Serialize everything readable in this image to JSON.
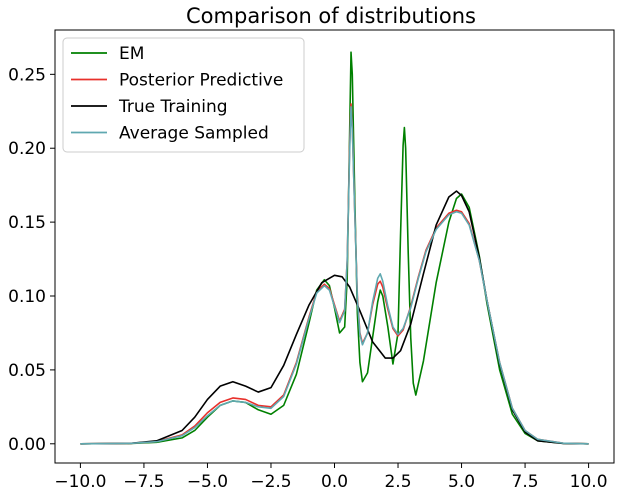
{
  "chart_data": {
    "type": "line",
    "title": "Comparison of distributions",
    "xlabel": "",
    "ylabel": "",
    "xlim": [
      -11.0,
      11.0
    ],
    "ylim": [
      -0.013,
      0.28
    ],
    "x_ticks": [
      -10.0,
      -7.5,
      -5.0,
      -2.5,
      0.0,
      2.5,
      5.0,
      7.5,
      10.0
    ],
    "x_tick_labels": [
      "−10.0",
      "−7.5",
      "−5.0",
      "−2.5",
      "0.0",
      "2.5",
      "5.0",
      "7.5",
      "10.0"
    ],
    "y_ticks": [
      0.0,
      0.05,
      0.1,
      0.15,
      0.2,
      0.25
    ],
    "y_tick_labels": [
      "0.00",
      "0.05",
      "0.10",
      "0.15",
      "0.20",
      "0.25"
    ],
    "grid": false,
    "legend_position": "top-left",
    "series": [
      {
        "name": "EM",
        "color": "#008000",
        "x": [
          -10,
          -8,
          -7,
          -6,
          -5.5,
          -5,
          -4.5,
          -4,
          -3.5,
          -3,
          -2.5,
          -2,
          -1.5,
          -1,
          -0.7,
          -0.4,
          -0.2,
          0,
          0.2,
          0.4,
          0.5,
          0.6,
          0.65,
          0.7,
          0.8,
          0.9,
          1.0,
          1.1,
          1.3,
          1.5,
          1.7,
          1.8,
          1.9,
          2.1,
          2.3,
          2.5,
          2.6,
          2.7,
          2.75,
          2.8,
          2.9,
          3.0,
          3.1,
          3.2,
          3.5,
          4.0,
          4.5,
          4.8,
          5.0,
          5.3,
          5.7,
          6.0,
          6.5,
          7.0,
          7.5,
          8.0,
          9.0,
          10.0
        ],
        "y": [
          0.0,
          0.0002,
          0.001,
          0.004,
          0.009,
          0.018,
          0.026,
          0.029,
          0.028,
          0.023,
          0.02,
          0.026,
          0.047,
          0.082,
          0.104,
          0.111,
          0.107,
          0.092,
          0.075,
          0.079,
          0.112,
          0.215,
          0.265,
          0.25,
          0.165,
          0.088,
          0.055,
          0.042,
          0.048,
          0.072,
          0.096,
          0.104,
          0.1,
          0.079,
          0.054,
          0.075,
          0.142,
          0.202,
          0.214,
          0.2,
          0.13,
          0.072,
          0.041,
          0.033,
          0.056,
          0.109,
          0.15,
          0.166,
          0.169,
          0.16,
          0.127,
          0.095,
          0.05,
          0.02,
          0.007,
          0.002,
          0.0003,
          0.0
        ]
      },
      {
        "name": "Posterior Predictive",
        "color": "#e8302b",
        "x": [
          -10,
          -8,
          -7,
          -6,
          -5.5,
          -5,
          -4.5,
          -4,
          -3.5,
          -3,
          -2.5,
          -2,
          -1.5,
          -1,
          -0.7,
          -0.4,
          -0.2,
          0,
          0.2,
          0.4,
          0.5,
          0.6,
          0.65,
          0.7,
          0.8,
          0.9,
          1.0,
          1.1,
          1.3,
          1.5,
          1.7,
          1.8,
          1.9,
          2.1,
          2.3,
          2.5,
          2.7,
          3.0,
          3.3,
          3.6,
          4.0,
          4.5,
          4.8,
          5.0,
          5.3,
          5.7,
          6.0,
          6.5,
          7.0,
          7.5,
          8.0,
          9.0,
          10.0
        ],
        "y": [
          0.0,
          0.0003,
          0.0015,
          0.006,
          0.012,
          0.021,
          0.028,
          0.031,
          0.03,
          0.026,
          0.025,
          0.033,
          0.055,
          0.086,
          0.103,
          0.108,
          0.105,
          0.094,
          0.083,
          0.091,
          0.124,
          0.205,
          0.23,
          0.215,
          0.155,
          0.1,
          0.075,
          0.068,
          0.075,
          0.094,
          0.108,
          0.11,
          0.106,
          0.091,
          0.078,
          0.073,
          0.077,
          0.093,
          0.113,
          0.131,
          0.146,
          0.156,
          0.158,
          0.157,
          0.149,
          0.124,
          0.097,
          0.055,
          0.024,
          0.009,
          0.003,
          0.0004,
          0.0
        ]
      },
      {
        "name": "True Training",
        "color": "#000000",
        "x": [
          -10,
          -8,
          -7,
          -6,
          -5.5,
          -5,
          -4.5,
          -4,
          -3.5,
          -3,
          -2.5,
          -2,
          -1.5,
          -1,
          -0.5,
          0,
          0.3,
          0.6,
          1.0,
          1.5,
          2.0,
          2.3,
          2.6,
          3.0,
          3.5,
          4.0,
          4.5,
          4.8,
          5.0,
          5.3,
          5.7,
          6.0,
          6.5,
          7.0,
          7.5,
          8.0,
          9.0,
          10.0
        ],
        "y": [
          0.0,
          0.0003,
          0.002,
          0.009,
          0.018,
          0.03,
          0.039,
          0.042,
          0.039,
          0.035,
          0.038,
          0.053,
          0.074,
          0.094,
          0.109,
          0.114,
          0.113,
          0.106,
          0.09,
          0.069,
          0.058,
          0.058,
          0.063,
          0.081,
          0.115,
          0.148,
          0.167,
          0.171,
          0.168,
          0.157,
          0.126,
          0.097,
          0.054,
          0.023,
          0.008,
          0.002,
          0.0002,
          0.0
        ]
      },
      {
        "name": "Average Sampled",
        "color": "#5fa8b0",
        "x": [
          -10,
          -8,
          -7,
          -6,
          -5.5,
          -5,
          -4.5,
          -4,
          -3.5,
          -3,
          -2.5,
          -2,
          -1.5,
          -1,
          -0.7,
          -0.4,
          -0.2,
          0,
          0.2,
          0.4,
          0.5,
          0.6,
          0.65,
          0.7,
          0.8,
          0.9,
          1.0,
          1.1,
          1.3,
          1.5,
          1.7,
          1.8,
          1.9,
          2.1,
          2.3,
          2.5,
          2.7,
          3.0,
          3.3,
          3.6,
          4.0,
          4.5,
          4.8,
          5.0,
          5.3,
          5.7,
          6.0,
          6.5,
          7.0,
          7.5,
          8.0,
          9.0,
          10.0
        ],
        "y": [
          0.0,
          0.0003,
          0.0014,
          0.0055,
          0.011,
          0.019,
          0.026,
          0.029,
          0.028,
          0.025,
          0.024,
          0.032,
          0.054,
          0.085,
          0.102,
          0.107,
          0.104,
          0.093,
          0.082,
          0.09,
          0.124,
          0.2,
          0.228,
          0.213,
          0.155,
          0.098,
          0.074,
          0.067,
          0.075,
          0.096,
          0.112,
          0.115,
          0.11,
          0.093,
          0.079,
          0.074,
          0.078,
          0.092,
          0.112,
          0.13,
          0.145,
          0.155,
          0.157,
          0.156,
          0.148,
          0.124,
          0.097,
          0.055,
          0.024,
          0.009,
          0.003,
          0.0004,
          0.0
        ]
      }
    ]
  }
}
